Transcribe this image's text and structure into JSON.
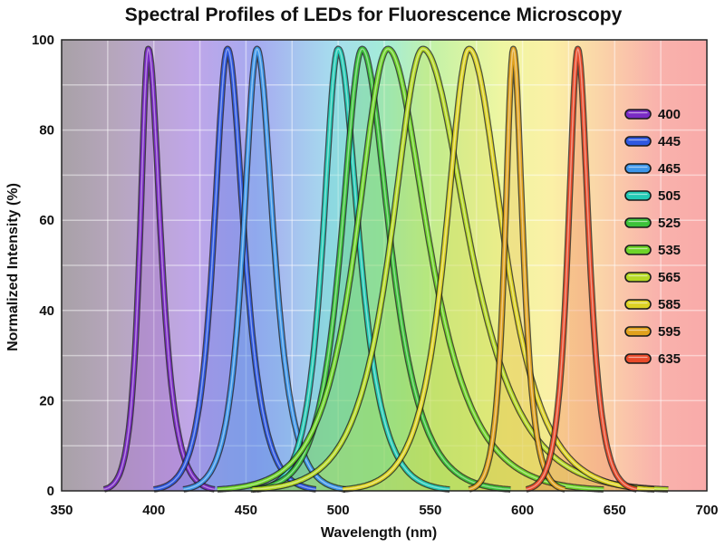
{
  "chart_data": {
    "type": "line",
    "title": "Spectral Profiles of LEDs for Fluorescence Microscopy",
    "xlabel": "Wavelength (nm)",
    "ylabel": "Normalized Intensity (%)",
    "xlim": [
      350,
      700
    ],
    "ylim": [
      0,
      100
    ],
    "xticks": [
      350,
      400,
      450,
      500,
      550,
      600,
      650,
      700
    ],
    "yticks": [
      0,
      20,
      40,
      60,
      80,
      100
    ],
    "grid": true,
    "legend_position": "right",
    "background": "visible spectrum gradient",
    "series": [
      {
        "name": "400",
        "peak": 397,
        "fwhm_left": 6,
        "fwhm_right": 9,
        "peak_value": 98,
        "color": "#7a2bc4",
        "fill": "#9b59c9"
      },
      {
        "name": "445",
        "peak": 440,
        "fwhm_left": 10,
        "fwhm_right": 12,
        "peak_value": 98,
        "color": "#2e58e0",
        "fill": "#4d6fdc"
      },
      {
        "name": "465",
        "peak": 456,
        "fwhm_left": 10,
        "fwhm_right": 12,
        "peak_value": 98,
        "color": "#3d95e8",
        "fill": "#5aa6e6"
      },
      {
        "name": "505",
        "peak": 500,
        "fwhm_left": 11,
        "fwhm_right": 15,
        "peak_value": 98,
        "color": "#22c9b4",
        "fill": "#4fd0bd"
      },
      {
        "name": "525",
        "peak": 513,
        "fwhm_left": 15,
        "fwhm_right": 20,
        "peak_value": 98,
        "color": "#3cc23a",
        "fill": "#58c955"
      },
      {
        "name": "535",
        "peak": 527,
        "fwhm_left": 23,
        "fwhm_right": 29,
        "peak_value": 98,
        "color": "#6ed329",
        "fill": "#8bd74b"
      },
      {
        "name": "565",
        "peak": 546,
        "fwhm_left": 23,
        "fwhm_right": 33,
        "peak_value": 98,
        "color": "#b5d825",
        "fill": "#c3dd4a"
      },
      {
        "name": "585",
        "peak": 571,
        "fwhm_left": 17,
        "fwhm_right": 25,
        "peak_value": 98,
        "color": "#dcd224",
        "fill": "#e3d94a"
      },
      {
        "name": "595",
        "peak": 595,
        "fwhm_left": 6,
        "fwhm_right": 7,
        "peak_value": 98,
        "color": "#e0a11e",
        "fill": "#e8b443"
      },
      {
        "name": "635",
        "peak": 630,
        "fwhm_left": 7,
        "fwhm_right": 8,
        "peak_value": 98,
        "color": "#e84a2a",
        "fill": "#ec6847"
      }
    ]
  }
}
